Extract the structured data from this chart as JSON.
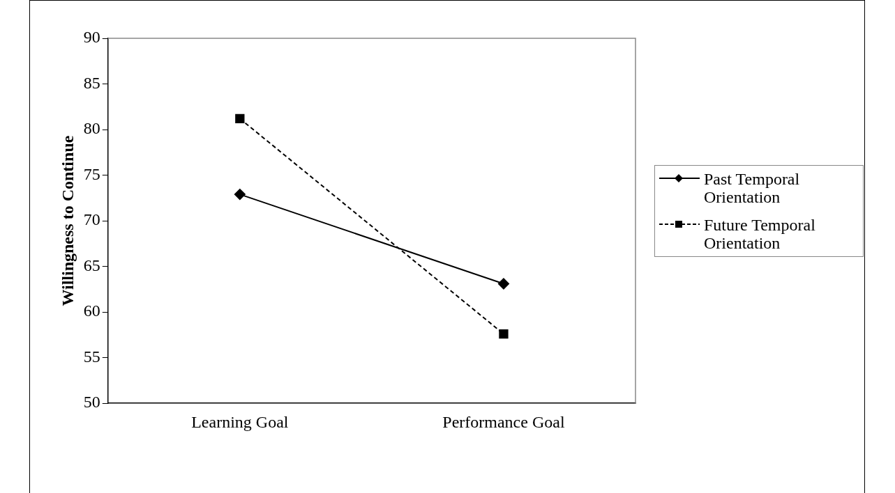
{
  "chart_data": {
    "type": "line",
    "ylabel": "Willingness to Continue",
    "categories": [
      "Learning Goal",
      "Performance Goal"
    ],
    "series": [
      {
        "name": "Past Temporal Orientation",
        "color": "#000000",
        "values": [
          72.9,
          63.1
        ],
        "marker": "diamond",
        "line_style": "solid"
      },
      {
        "name": "Future Temporal Orientation",
        "color": "#000000",
        "values": [
          81.2,
          57.6
        ],
        "marker": "square",
        "line_style": "dashed"
      }
    ],
    "ylim": [
      50,
      90
    ],
    "yticks": [
      50,
      55,
      60,
      65,
      70,
      75,
      80,
      85,
      90
    ],
    "grid": false,
    "legend": "right"
  }
}
